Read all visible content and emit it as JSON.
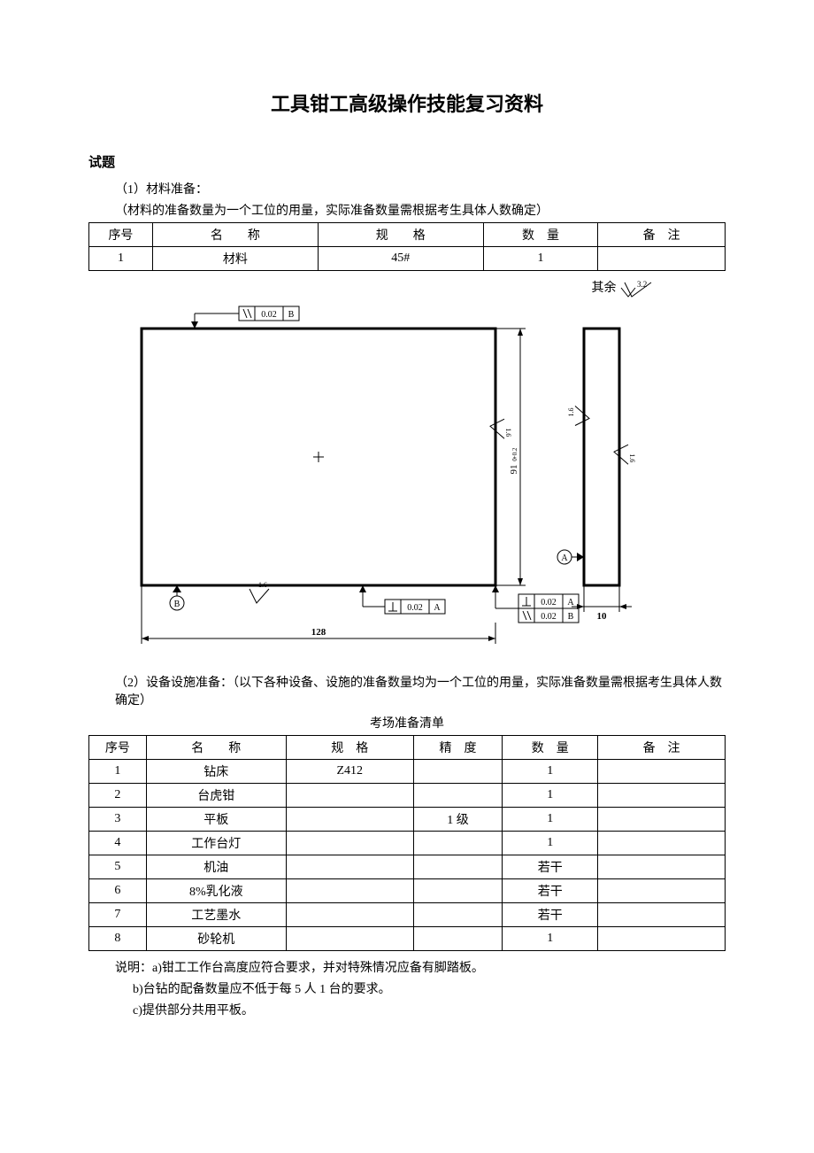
{
  "title": "工具钳工高级操作技能复习资料",
  "section_label": "试题",
  "part1": {
    "heading": "（1）材料准备：",
    "note": "（材料的准备数量为一个工位的用量，实际准备数量需根据考生具体人数确定）",
    "columns": [
      "序号",
      "名　　称",
      "规　　格",
      "数　量",
      "备　注"
    ],
    "rows": [
      [
        "1",
        "材料",
        "45#",
        "1",
        ""
      ]
    ]
  },
  "qiyu_label": "其余",
  "surface_finish_value": "3.2",
  "diagram": {
    "outer_width_label": "128",
    "outer_height_label": "91",
    "height_tolerance": "+0.2\n0",
    "side_width_label": "10",
    "gtol_top": {
      "symbol": "parallel",
      "value": "0.02",
      "datum": "B"
    },
    "gtol_bottom_left": {
      "symbol": "perp",
      "value": "0.02",
      "datum": "A"
    },
    "gtol_bottom_right": [
      {
        "symbol": "perp",
        "value": "0.02",
        "datum": "A"
      },
      {
        "symbol": "parallel",
        "value": "0.02",
        "datum": "B"
      }
    ],
    "datum_a": "A",
    "datum_b": "B",
    "ra_value": "1.6",
    "colors": {
      "stroke": "#000000",
      "thick": 3,
      "thin": 1,
      "text": "#000000",
      "bg": "#ffffff"
    }
  },
  "part2": {
    "heading": "（2）设备设施准备：（以下各种设备、设施的准备数量均为一个工位的用量，实际准备数量需根据考生具体人数确定）",
    "caption": "考场准备清单",
    "columns": [
      "序号",
      "名　　称",
      "规　格",
      "精　度",
      "数　量",
      "备　注"
    ],
    "rows": [
      [
        "1",
        "钻床",
        "Z412",
        "",
        "1",
        ""
      ],
      [
        "2",
        "台虎钳",
        "",
        "",
        "1",
        ""
      ],
      [
        "3",
        "平板",
        "",
        "1 级",
        "1",
        ""
      ],
      [
        "4",
        "工作台灯",
        "",
        "",
        "1",
        ""
      ],
      [
        "5",
        "机油",
        "",
        "",
        "若干",
        ""
      ],
      [
        "6",
        "8%乳化液",
        "",
        "",
        "若干",
        ""
      ],
      [
        "7",
        "工艺墨水",
        "",
        "",
        "若干",
        ""
      ],
      [
        "8",
        "砂轮机",
        "",
        "",
        "1",
        ""
      ]
    ]
  },
  "notes": {
    "lead": "说明：",
    "items": [
      "a)钳工工作台高度应符合要求，并对特殊情况应备有脚踏板。",
      "b)台钻的配备数量应不低于每 5 人 1 台的要求。",
      "c)提供部分共用平板。"
    ]
  }
}
